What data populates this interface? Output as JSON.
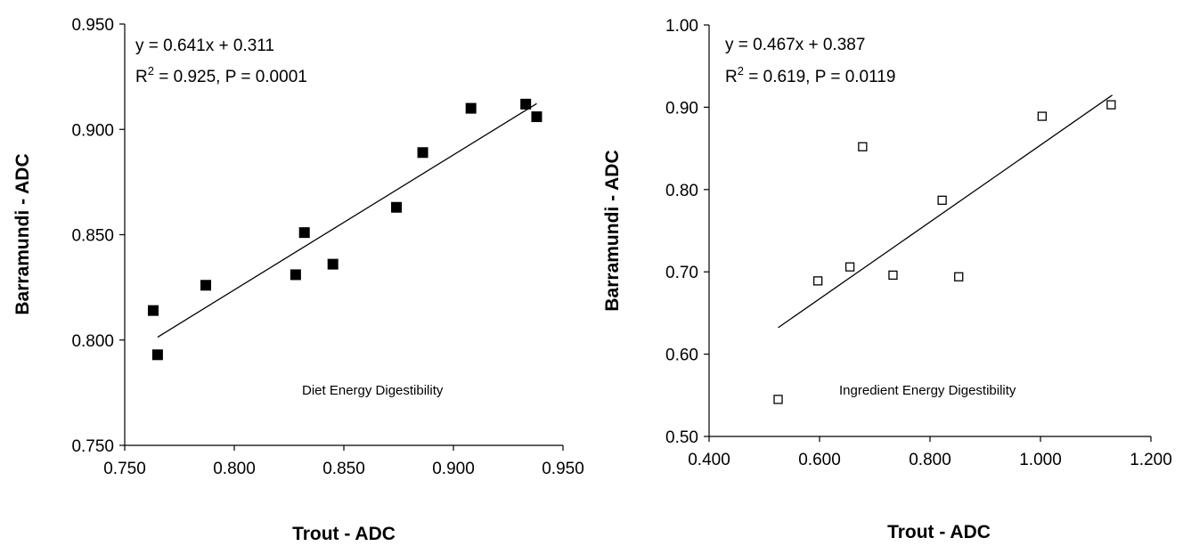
{
  "chart_data": [
    {
      "type": "scatter",
      "marker": "filled-square",
      "color": "#000000",
      "xlabel": "Trout - ADC",
      "ylabel": "Barramundi - ADC",
      "xlim": [
        0.75,
        0.95
      ],
      "ylim": [
        0.75,
        0.95
      ],
      "xticks": [
        "0.750",
        "0.800",
        "0.850",
        "0.900",
        "0.950"
      ],
      "yticks": [
        "0.750",
        "0.800",
        "0.850",
        "0.900",
        "0.950"
      ],
      "equation": "y = 0.641x + 0.311",
      "r2_label": "R",
      "r2_sup": "2",
      "r2_rest": " = 0.925, P = 0.0001",
      "annotation": "Diet Energy  Digestibility",
      "trendline": {
        "slope": 0.641,
        "intercept": 0.311,
        "x_range": [
          0.765,
          0.938
        ]
      },
      "points": [
        {
          "x": 0.763,
          "y": 0.814
        },
        {
          "x": 0.765,
          "y": 0.793
        },
        {
          "x": 0.787,
          "y": 0.826
        },
        {
          "x": 0.828,
          "y": 0.831
        },
        {
          "x": 0.832,
          "y": 0.851
        },
        {
          "x": 0.845,
          "y": 0.836
        },
        {
          "x": 0.874,
          "y": 0.863
        },
        {
          "x": 0.886,
          "y": 0.889
        },
        {
          "x": 0.908,
          "y": 0.91
        },
        {
          "x": 0.933,
          "y": 0.912
        },
        {
          "x": 0.938,
          "y": 0.906
        }
      ]
    },
    {
      "type": "scatter",
      "marker": "open-square",
      "color": "#000000",
      "xlabel": "Trout - ADC",
      "ylabel": "Barramundi - ADC",
      "xlim": [
        0.4,
        1.2
      ],
      "ylim": [
        0.5,
        1.0
      ],
      "xticks": [
        "0.400",
        "0.600",
        "0.800",
        "1.000",
        "1.200"
      ],
      "yticks": [
        "0.50",
        "0.60",
        "0.70",
        "0.80",
        "0.90",
        "1.00"
      ],
      "equation": "y = 0.467x + 0.387",
      "r2_label": "R",
      "r2_sup": "2",
      "r2_rest": " = 0.619, P = 0.0119",
      "annotation": "Ingredient Energy  Digestibility",
      "trendline": {
        "slope": 0.467,
        "intercept": 0.387,
        "x_range": [
          0.525,
          1.13
        ]
      },
      "points": [
        {
          "x": 0.525,
          "y": 0.545
        },
        {
          "x": 0.597,
          "y": 0.689
        },
        {
          "x": 0.655,
          "y": 0.706
        },
        {
          "x": 0.678,
          "y": 0.852
        },
        {
          "x": 0.733,
          "y": 0.696
        },
        {
          "x": 0.822,
          "y": 0.787
        },
        {
          "x": 0.852,
          "y": 0.694
        },
        {
          "x": 1.003,
          "y": 0.889
        },
        {
          "x": 1.128,
          "y": 0.903
        }
      ]
    }
  ]
}
